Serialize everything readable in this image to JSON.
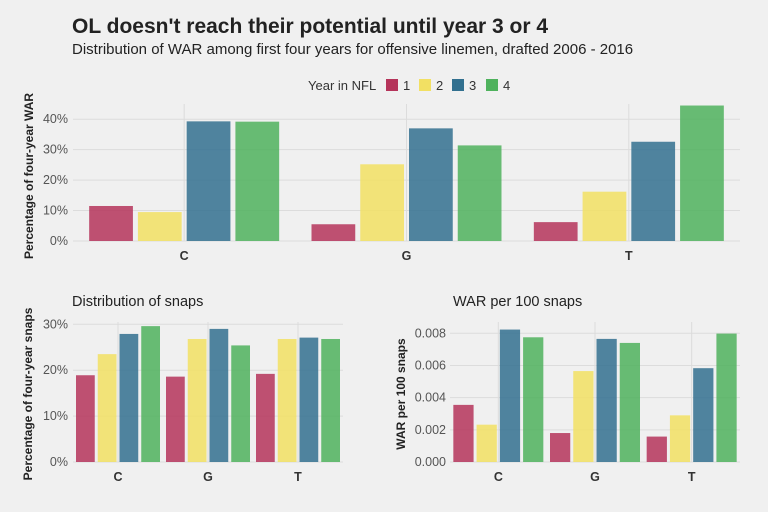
{
  "title": "OL doesn't reach their potential until year 3 or 4",
  "subtitle": "Distribution of WAR among first four years for offensive linemen, drafted 2006 - 2016",
  "legend": {
    "title": "Year in NFL",
    "placement": "top-center",
    "items": [
      {
        "label": "1",
        "color": "#b5345a"
      },
      {
        "label": "2",
        "color": "#f2e063"
      },
      {
        "label": "3",
        "color": "#32708f"
      },
      {
        "label": "4",
        "color": "#4fb25d"
      }
    ]
  },
  "chart_data": [
    {
      "type": "bar",
      "title": "",
      "xlabel": "",
      "ylabel": "Percentage of four-year WAR",
      "categories": [
        "C",
        "G",
        "T"
      ],
      "series": [
        {
          "name": "1",
          "values": [
            11.5,
            5.5,
            6.2
          ]
        },
        {
          "name": "2",
          "values": [
            9.5,
            25.2,
            16.2
          ]
        },
        {
          "name": "3",
          "values": [
            39.3,
            37.0,
            32.6
          ]
        },
        {
          "name": "4",
          "values": [
            39.2,
            31.4,
            44.5
          ]
        }
      ],
      "ylim": [
        0,
        45
      ],
      "yticks": [
        0,
        10,
        20,
        30,
        40
      ],
      "ytick_labels": [
        "0%",
        "10%",
        "20%",
        "30%",
        "40%"
      ],
      "grid": true
    },
    {
      "type": "bar",
      "title": "Distribution of snaps",
      "xlabel": "",
      "ylabel": "Percentage of four-year snaps",
      "categories": [
        "C",
        "G",
        "T"
      ],
      "series": [
        {
          "name": "1",
          "values": [
            18.9,
            18.6,
            19.2
          ]
        },
        {
          "name": "2",
          "values": [
            23.5,
            26.8,
            26.8
          ]
        },
        {
          "name": "3",
          "values": [
            27.9,
            29.0,
            27.1
          ]
        },
        {
          "name": "4",
          "values": [
            29.6,
            25.4,
            26.8
          ]
        }
      ],
      "ylim": [
        0,
        30.5
      ],
      "yticks": [
        0,
        10,
        20,
        30
      ],
      "ytick_labels": [
        "0%",
        "10%",
        "20%",
        "30%"
      ],
      "grid": true
    },
    {
      "type": "bar",
      "title": "WAR per 100 snaps",
      "xlabel": "",
      "ylabel": "WAR per 100 snaps",
      "categories": [
        "C",
        "G",
        "T"
      ],
      "series": [
        {
          "name": "1",
          "values": [
            0.00355,
            0.0018,
            0.00158
          ]
        },
        {
          "name": "2",
          "values": [
            0.00232,
            0.00565,
            0.0029
          ]
        },
        {
          "name": "3",
          "values": [
            0.00823,
            0.00765,
            0.00583
          ]
        },
        {
          "name": "4",
          "values": [
            0.00775,
            0.0074,
            0.00798
          ]
        }
      ],
      "ylim": [
        0,
        0.0087
      ],
      "yticks": [
        0,
        0.002,
        0.004,
        0.006,
        0.008
      ],
      "ytick_labels": [
        "0.000",
        "0.002",
        "0.004",
        "0.006",
        "0.008"
      ],
      "grid": true
    }
  ]
}
